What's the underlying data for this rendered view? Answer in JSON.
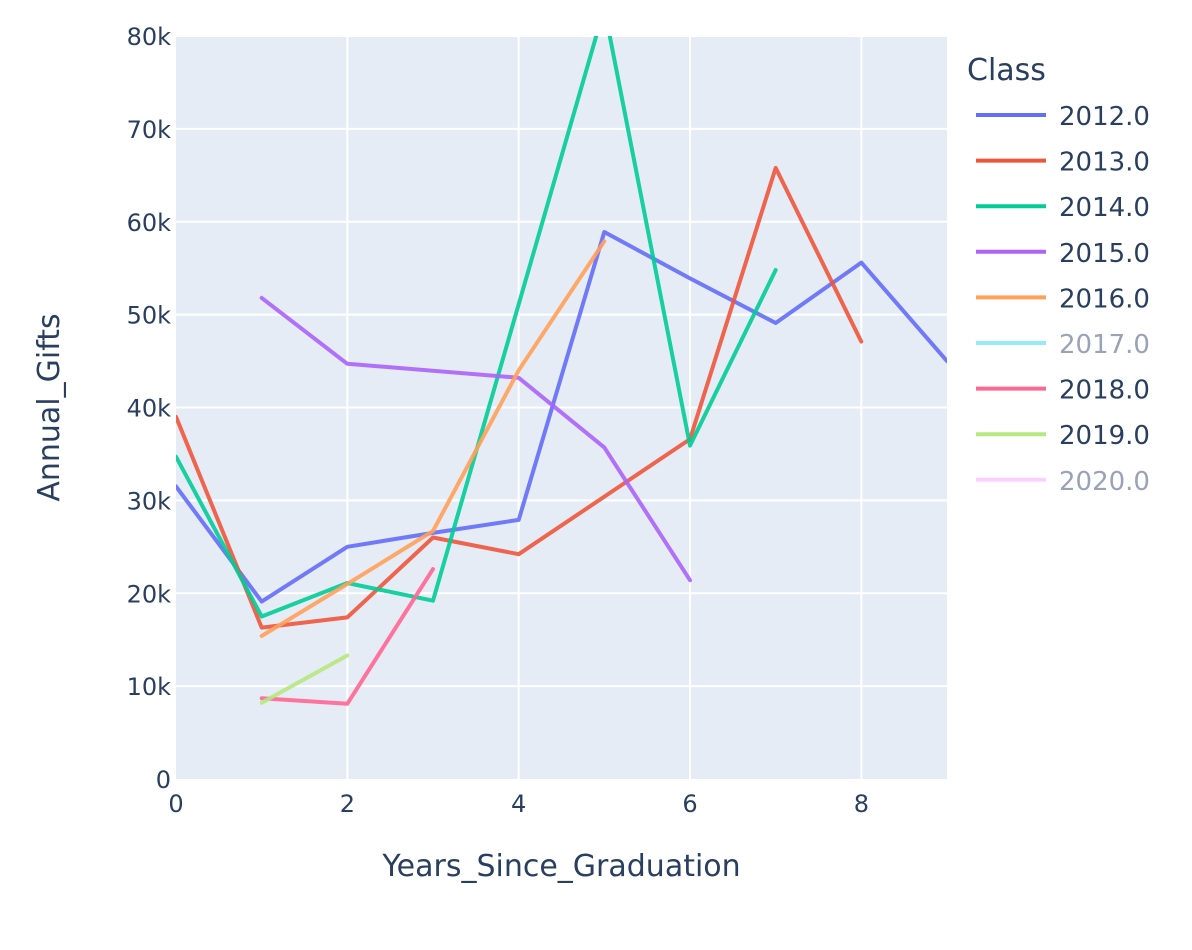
{
  "chart_data": {
    "type": "line",
    "title": "",
    "xlabel": "Years_Since_Graduation",
    "ylabel": "Annual_Gifts",
    "xlim": [
      0,
      9
    ],
    "ylim": [
      0,
      80000
    ],
    "x_ticks": [
      0,
      2,
      4,
      6,
      8
    ],
    "x_tick_labels": [
      "0",
      "2",
      "4",
      "6",
      "8"
    ],
    "y_ticks": [
      0,
      10000,
      20000,
      30000,
      40000,
      50000,
      60000,
      70000,
      80000
    ],
    "y_tick_labels": [
      "0",
      "10k",
      "20k",
      "30k",
      "40k",
      "50k",
      "60k",
      "70k",
      "80k"
    ],
    "grid": true,
    "legend_position": "right",
    "legend_title": "Class",
    "series": [
      {
        "name": "2012.0",
        "color": "#636efa",
        "x": [
          0,
          1,
          2,
          3,
          4,
          5,
          6,
          7,
          8,
          9
        ],
        "y": [
          31500,
          19100,
          25000,
          26500,
          27900,
          58900,
          53900,
          49100,
          55600,
          45000
        ]
      },
      {
        "name": "2013.0",
        "color": "#EF553B",
        "x": [
          0,
          1,
          2,
          3,
          4,
          6,
          7,
          8
        ],
        "y": [
          39000,
          16300,
          17400,
          26000,
          24200,
          36600,
          65800,
          47100
        ]
      },
      {
        "name": "2014.0",
        "color": "#00cc96",
        "x": [
          0,
          1,
          2,
          3,
          5,
          6,
          7
        ],
        "y": [
          34700,
          17500,
          21100,
          19200,
          83000,
          35900,
          54800
        ]
      },
      {
        "name": "2015.0",
        "color": "#ab63fa",
        "x": [
          1,
          2,
          4,
          5,
          6
        ],
        "y": [
          51800,
          44700,
          43200,
          35700,
          21400
        ]
      },
      {
        "name": "2016.0",
        "color": "#FFA15A",
        "x": [
          1,
          2,
          3,
          4,
          5
        ],
        "y": [
          15400,
          21000,
          26700,
          44000,
          57900
        ]
      },
      {
        "name": "2017.0",
        "color": "#19d3f3",
        "x": [],
        "y": []
      },
      {
        "name": "2018.0",
        "color": "#FF6692",
        "x": [
          1,
          2,
          3
        ],
        "y": [
          8700,
          8100,
          22600
        ]
      },
      {
        "name": "2019.0",
        "color": "#B6E880",
        "x": [
          1,
          2
        ],
        "y": [
          8200,
          13300
        ]
      },
      {
        "name": "2020.0",
        "color": "#FF97FF",
        "x": [],
        "y": []
      }
    ],
    "plot_background": "#e5ecf6",
    "gridline_color": "#ffffff",
    "text_color": "#2a3f5f"
  }
}
